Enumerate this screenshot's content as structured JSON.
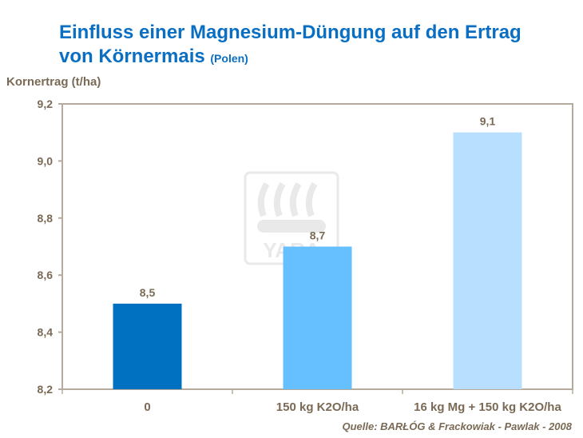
{
  "title_main": "Einfluss einer Magnesium-Düngung auf den Ertrag",
  "title_line2": "von Körnermais",
  "title_suffix": "(Polen)",
  "source": "Quelle:  BARŁÓG & Frackowiak - Pawlak - 2008",
  "watermark": "YARA",
  "chart_data": {
    "type": "bar",
    "title": "Einfluss einer Magnesium-Düngung auf den Ertrag von Körnermais (Polen)",
    "xlabel": "",
    "ylabel": "Kornertrag (t/ha)",
    "categories": [
      "0",
      "150 kg K2O/ha",
      "16 kg Mg + 150 kg K2O/ha"
    ],
    "values": [
      8.5,
      8.7,
      9.1
    ],
    "data_labels": [
      "8,5",
      "8,7",
      "9,1"
    ],
    "colors": [
      "#0070c0",
      "#66bfff",
      "#b8dfff"
    ],
    "ylim": [
      8.2,
      9.2
    ],
    "yticks": [
      "8,2",
      "8,4",
      "8,6",
      "8,8",
      "9,0",
      "9,2"
    ],
    "grid": false,
    "legend": "none"
  }
}
